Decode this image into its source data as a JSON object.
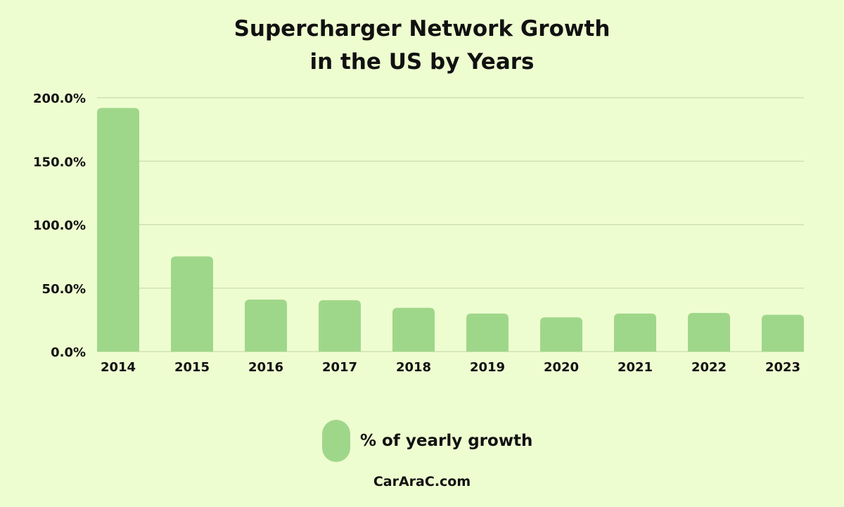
{
  "colors": {
    "background": "#eefdd0",
    "bar": "#9fd78a",
    "grid": "#c9dcae",
    "text": "#111111"
  },
  "chart_data": {
    "type": "bar",
    "title": [
      "Supercharger Network Growth",
      "in the US by Years"
    ],
    "categories": [
      "2014",
      "2015",
      "2016",
      "2017",
      "2018",
      "2019",
      "2020",
      "2021",
      "2022",
      "2023"
    ],
    "series": [
      {
        "name": "% of yearly growth",
        "values": [
          192,
          75,
          41,
          40.5,
          34.5,
          30,
          27,
          30,
          30.5,
          29
        ]
      }
    ],
    "y_ticks": [
      "0.0%",
      "50.0%",
      "100.0%",
      "150.0%",
      "200.0%"
    ],
    "y_tick_values": [
      0,
      50,
      100,
      150,
      200
    ],
    "ylim": [
      0,
      200
    ],
    "grid": true,
    "legend_position": "bottom-center"
  },
  "watermark": "CarAraC.com"
}
